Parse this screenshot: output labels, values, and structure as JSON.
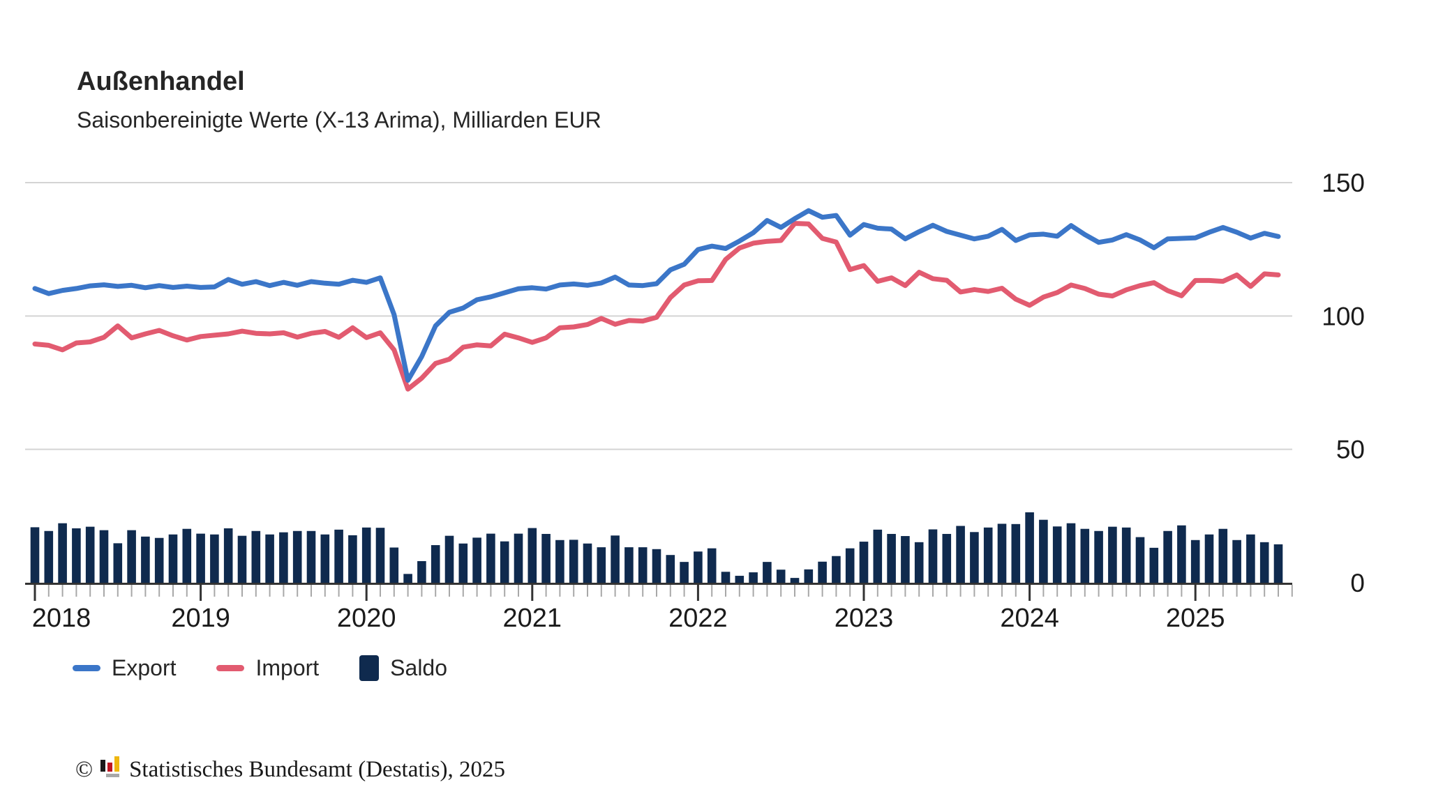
{
  "chart_data": {
    "type": "line",
    "title": "Außenhandel",
    "subtitle": "Saisonbereinigte Werte (X-13 Arima), Milliarden EUR",
    "unit": "Milliarden EUR",
    "grid": "horizontal",
    "legend_position": "bottom-left",
    "ylim": [
      0,
      150
    ],
    "yticks": [
      150,
      100,
      50,
      0
    ],
    "x": {
      "frequency": "monthly",
      "start": "2018-01",
      "end": "2025-07",
      "year_labels": [
        "2018",
        "2019",
        "2020",
        "2021",
        "2022",
        "2023",
        "2024",
        "2025"
      ]
    },
    "months": [
      "2018-01",
      "2018-02",
      "2018-03",
      "2018-04",
      "2018-05",
      "2018-06",
      "2018-07",
      "2018-08",
      "2018-09",
      "2018-10",
      "2018-11",
      "2018-12",
      "2019-01",
      "2019-02",
      "2019-03",
      "2019-04",
      "2019-05",
      "2019-06",
      "2019-07",
      "2019-08",
      "2019-09",
      "2019-10",
      "2019-11",
      "2019-12",
      "2020-01",
      "2020-02",
      "2020-03",
      "2020-04",
      "2020-05",
      "2020-06",
      "2020-07",
      "2020-08",
      "2020-09",
      "2020-10",
      "2020-11",
      "2020-12",
      "2021-01",
      "2021-02",
      "2021-03",
      "2021-04",
      "2021-05",
      "2021-06",
      "2021-07",
      "2021-08",
      "2021-09",
      "2021-10",
      "2021-11",
      "2021-12",
      "2022-01",
      "2022-02",
      "2022-03",
      "2022-04",
      "2022-05",
      "2022-06",
      "2022-07",
      "2022-08",
      "2022-09",
      "2022-10",
      "2022-11",
      "2022-12",
      "2023-01",
      "2023-02",
      "2023-03",
      "2023-04",
      "2023-05",
      "2023-06",
      "2023-07",
      "2023-08",
      "2023-09",
      "2023-10",
      "2023-11",
      "2023-12",
      "2024-01",
      "2024-02",
      "2024-03",
      "2024-04",
      "2024-05",
      "2024-06",
      "2024-07",
      "2024-08",
      "2024-09",
      "2024-10",
      "2024-11",
      "2024-12",
      "2025-01",
      "2025-02",
      "2025-03",
      "2025-04",
      "2025-05",
      "2025-06",
      "2025-07"
    ],
    "series": [
      {
        "name": "Export",
        "type": "line",
        "color": "#3b76c8",
        "values": [
          110.3,
          108.4,
          109.6,
          110.3,
          111.3,
          111.7,
          111.1,
          111.5,
          110.6,
          111.4,
          110.7,
          111.2,
          110.7,
          110.9,
          113.7,
          111.9,
          112.9,
          111.4,
          112.6,
          111.5,
          112.9,
          112.3,
          111.9,
          113.4,
          112.6,
          114.3,
          100.5,
          75.9,
          84.8,
          96.3,
          101.4,
          103.0,
          106.1,
          107.2,
          108.7,
          110.2,
          110.6,
          110.1,
          111.6,
          112.0,
          111.5,
          112.4,
          114.6,
          111.6,
          111.4,
          112.1,
          117.3,
          119.4,
          124.9,
          126.2,
          125.3,
          128.1,
          131.2,
          135.8,
          133.2,
          136.5,
          139.5,
          137.0,
          137.7,
          130.3,
          134.3,
          132.9,
          132.6,
          128.9,
          131.6,
          134.0,
          131.7,
          130.3,
          128.9,
          129.9,
          132.5,
          128.3,
          130.4,
          130.7,
          129.9,
          133.9,
          130.5,
          127.6,
          128.5,
          130.5,
          128.5,
          125.6,
          128.9,
          129.1,
          129.3,
          131.4,
          133.2,
          131.4,
          129.2,
          131.0,
          129.8
        ]
      },
      {
        "name": "Import",
        "type": "line",
        "color": "#e25b70",
        "values": [
          89.5,
          89.0,
          87.3,
          89.9,
          90.3,
          92.0,
          96.3,
          91.8,
          93.3,
          94.6,
          92.6,
          91.0,
          92.3,
          92.8,
          93.3,
          94.3,
          93.5,
          93.3,
          93.7,
          92.1,
          93.5,
          94.2,
          92.0,
          95.6,
          91.9,
          93.7,
          87.3,
          72.6,
          76.7,
          82.2,
          83.8,
          88.3,
          89.2,
          88.8,
          93.2,
          91.8,
          90.1,
          91.8,
          95.6,
          95.9,
          96.8,
          99.1,
          96.9,
          98.3,
          98.1,
          99.5,
          106.9,
          111.6,
          113.2,
          113.3,
          121.2,
          125.5,
          127.3,
          128.0,
          128.3,
          134.7,
          134.5,
          129.1,
          127.7,
          117.4,
          118.9,
          113.0,
          114.3,
          111.4,
          116.4,
          114.0,
          113.4,
          109.0,
          109.9,
          109.2,
          110.4,
          106.3,
          104.0,
          107.1,
          108.8,
          111.6,
          110.3,
          108.2,
          107.5,
          109.8,
          111.4,
          112.5,
          109.5,
          107.6,
          113.3,
          113.3,
          113.0,
          115.4,
          111.1,
          115.8,
          115.4
        ]
      },
      {
        "name": "Saldo",
        "type": "bar",
        "color": "#0f2a4e",
        "values": [
          20.8,
          19.4,
          22.3,
          20.4,
          21.0,
          19.7,
          14.8,
          19.7,
          17.3,
          16.8,
          18.1,
          20.2,
          18.4,
          18.1,
          20.4,
          17.6,
          19.4,
          18.1,
          18.9,
          19.4,
          19.4,
          18.1,
          19.9,
          17.8,
          20.7,
          20.6,
          13.2,
          3.3,
          8.1,
          14.1,
          17.6,
          14.7,
          16.9,
          18.4,
          15.5,
          18.4,
          20.5,
          18.3,
          16.0,
          16.1,
          14.7,
          13.3,
          17.7,
          13.3,
          13.3,
          12.6,
          10.4,
          7.8,
          11.7,
          12.9,
          4.1,
          2.6,
          3.9,
          7.8,
          4.9,
          1.8,
          5.0,
          7.9,
          10.0,
          12.9,
          15.4,
          19.9,
          18.3,
          17.5,
          15.2,
          20.0,
          18.3,
          21.3,
          19.0,
          20.7,
          22.1,
          22.0,
          26.4,
          23.6,
          21.1,
          22.3,
          20.2,
          19.4,
          21.0,
          20.7,
          17.1,
          13.1,
          19.4,
          21.5,
          16.0,
          18.1,
          20.2,
          16.0,
          18.1,
          15.2,
          14.4
        ]
      }
    ],
    "colors": {
      "grid": "#d4d4d4",
      "axis_line": "#333333",
      "minor_tick": "#a8a8a8",
      "major_tick": "#333333",
      "axis_text": "#1a1a1a"
    }
  },
  "footer": {
    "copyright_symbol": "©",
    "source": "Statistisches Bundesamt (Destatis), 2025",
    "logo_colors": {
      "black": "#1a1a1a",
      "red": "#c01622",
      "gold": "#efb70f",
      "grey": "#a8a8a8"
    }
  }
}
